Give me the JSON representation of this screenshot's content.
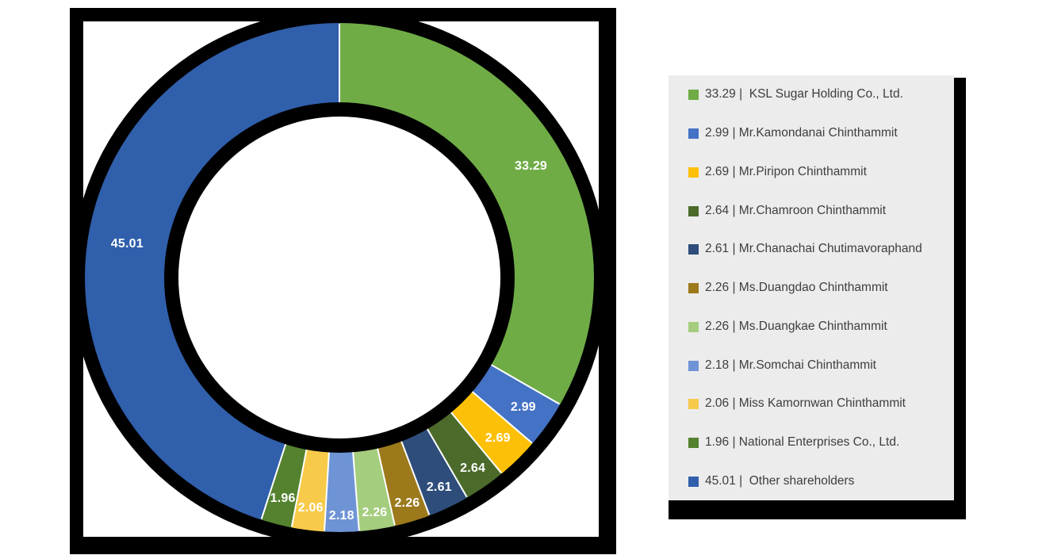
{
  "chart_data": {
    "type": "pie",
    "subtype": "donut",
    "title": "",
    "legend_position": "right",
    "legend_separator": "|",
    "data_labels_shown": true,
    "label_text_color": "#FFFFFF",
    "legend_bg_color": "#ECECEC",
    "legend_text_color": "#3E3E3E",
    "frame_color": "#000000",
    "segments": [
      {
        "name": "KSL Sugar Holding Co., Ltd.",
        "value": 33.29,
        "label": "33.29",
        "color": "#6FAC46",
        "legend_text": "33.29 |  KSL Sugar Holding Co., Ltd."
      },
      {
        "name": "Mr.Kamondanai Chinthammit",
        "value": 2.99,
        "label": "2.99",
        "color": "#4472C4",
        "legend_text": "2.99 | Mr.Kamondanai Chinthammit"
      },
      {
        "name": "Mr.Piripon Chinthammit",
        "value": 2.69,
        "label": "2.69",
        "color": "#FDC008",
        "legend_text": "2.69 | Mr.Piripon Chinthammit"
      },
      {
        "name": "Mr.Chamroon Chinthammit",
        "value": 2.64,
        "label": "2.64",
        "color": "#4C6B2B",
        "legend_text": "2.64 | Mr.Chamroon Chinthammit"
      },
      {
        "name": "Mr.Chanachai Chutimavoraphand",
        "value": 2.61,
        "label": "2.61",
        "color": "#2E4D7B",
        "legend_text": "2.61 | Mr.Chanachai Chutimavoraphand"
      },
      {
        "name": "Ms.Duangdao Chinthammit",
        "value": 2.26,
        "label": "2.26",
        "color": "#9C7A1B",
        "legend_text": "2.26 | Ms.Duangdao Chinthammit"
      },
      {
        "name": "Ms.Duangkae Chinthammit",
        "value": 2.26,
        "label": "2.26",
        "color": "#A4CD7E",
        "legend_text": "2.26 | Ms.Duangkae Chinthammit"
      },
      {
        "name": "Mr.Somchai Chinthammit",
        "value": 2.18,
        "label": "2.18",
        "color": "#6E94D6",
        "legend_text": "2.18 | Mr.Somchai Chinthammit"
      },
      {
        "name": "Miss Kamornwan Chinthammit",
        "value": 2.06,
        "label": "2.06",
        "color": "#F8CA49",
        "legend_text": "2.06 | Miss Kamornwan Chinthammit"
      },
      {
        "name": "National Enterprises Co., Ltd.",
        "value": 1.96,
        "label": "1.96",
        "color": "#54822F",
        "legend_text": "1.96 | National Enterprises Co., Ltd."
      },
      {
        "name": "Other shareholders",
        "value": 45.01,
        "label": "45.01",
        "color": "#305FAB",
        "legend_text": "45.01 |  Other shareholders"
      }
    ]
  }
}
